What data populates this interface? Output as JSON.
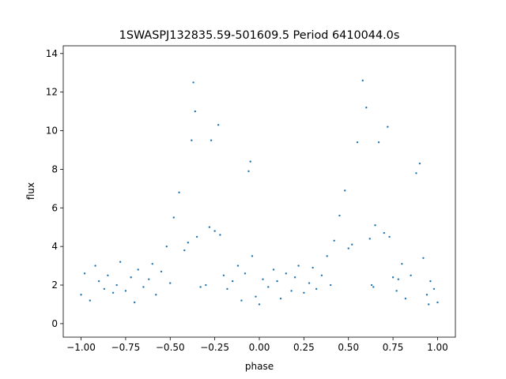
{
  "chart_data": {
    "type": "scatter",
    "title": "1SWASPJ132835.59-501609.5 Period 6410044.0s",
    "xlabel": "phase",
    "ylabel": "flux",
    "xlim": [
      -1.1,
      1.1
    ],
    "ylim": [
      -0.7,
      14.4
    ],
    "xticks": [
      -1.0,
      -0.75,
      -0.5,
      -0.25,
      0.0,
      0.25,
      0.5,
      0.75,
      1.0
    ],
    "xtick_labels": [
      "−1.00",
      "−0.75",
      "−0.50",
      "−0.25",
      "0.00",
      "0.25",
      "0.50",
      "0.75",
      "1.00"
    ],
    "yticks": [
      0,
      2,
      4,
      6,
      8,
      10,
      12,
      14
    ],
    "ytick_labels": [
      "0",
      "2",
      "4",
      "6",
      "8",
      "10",
      "12",
      "14"
    ],
    "grid": false,
    "marker_color": "#1f77b4",
    "series": [
      {
        "x": [
          -1.0,
          -0.98,
          -0.95,
          -0.92,
          -0.9,
          -0.87,
          -0.85,
          -0.82,
          -0.8,
          -0.78,
          -0.75,
          -0.72,
          -0.7,
          -0.68,
          -0.65,
          -0.62,
          -0.6,
          -0.58,
          -0.55,
          -0.52,
          -0.5,
          -0.48,
          -0.45,
          -0.42,
          -0.4,
          -0.38,
          -0.37,
          -0.36,
          -0.35,
          -0.33,
          -0.3,
          -0.28,
          -0.27,
          -0.25,
          -0.23,
          -0.22,
          -0.2,
          -0.18,
          -0.15,
          -0.12,
          -0.1,
          -0.08,
          -0.06,
          -0.05,
          -0.04,
          -0.02,
          0.0,
          0.02,
          0.05,
          0.08,
          0.1,
          0.12,
          0.15,
          0.18,
          0.2,
          0.22,
          0.25,
          0.28,
          0.3,
          0.32,
          0.35,
          0.38,
          0.4,
          0.42,
          0.45,
          0.48,
          0.5,
          0.52,
          0.55,
          0.58,
          0.6,
          0.62,
          0.63,
          0.64,
          0.65,
          0.67,
          0.7,
          0.72,
          0.73,
          0.75,
          0.77,
          0.78,
          0.8,
          0.82,
          0.85,
          0.88,
          0.9,
          0.92,
          0.94,
          0.95,
          0.96,
          0.98,
          1.0
        ],
        "y": [
          1.5,
          2.6,
          1.2,
          3.0,
          2.2,
          1.8,
          2.5,
          1.6,
          2.0,
          3.2,
          1.7,
          2.4,
          1.1,
          2.8,
          1.9,
          2.3,
          3.1,
          1.5,
          2.7,
          4.0,
          2.1,
          5.5,
          6.8,
          3.8,
          4.2,
          9.5,
          12.5,
          11.0,
          4.5,
          1.9,
          2.0,
          5.0,
          9.5,
          4.8,
          10.3,
          4.6,
          2.5,
          1.8,
          2.2,
          3.0,
          1.2,
          2.6,
          7.9,
          8.4,
          3.5,
          1.4,
          1.0,
          2.3,
          1.9,
          2.8,
          2.2,
          1.3,
          2.6,
          1.7,
          2.4,
          3.0,
          1.6,
          2.1,
          2.9,
          1.8,
          2.5,
          3.5,
          2.0,
          4.3,
          5.6,
          6.9,
          3.9,
          4.1,
          9.4,
          12.6,
          11.2,
          4.4,
          2.0,
          1.9,
          5.1,
          9.4,
          4.7,
          10.2,
          4.5,
          2.4,
          1.7,
          2.3,
          3.1,
          1.3,
          2.5,
          7.8,
          8.3,
          3.4,
          1.5,
          1.0,
          2.2,
          1.8,
          1.1
        ]
      }
    ]
  }
}
